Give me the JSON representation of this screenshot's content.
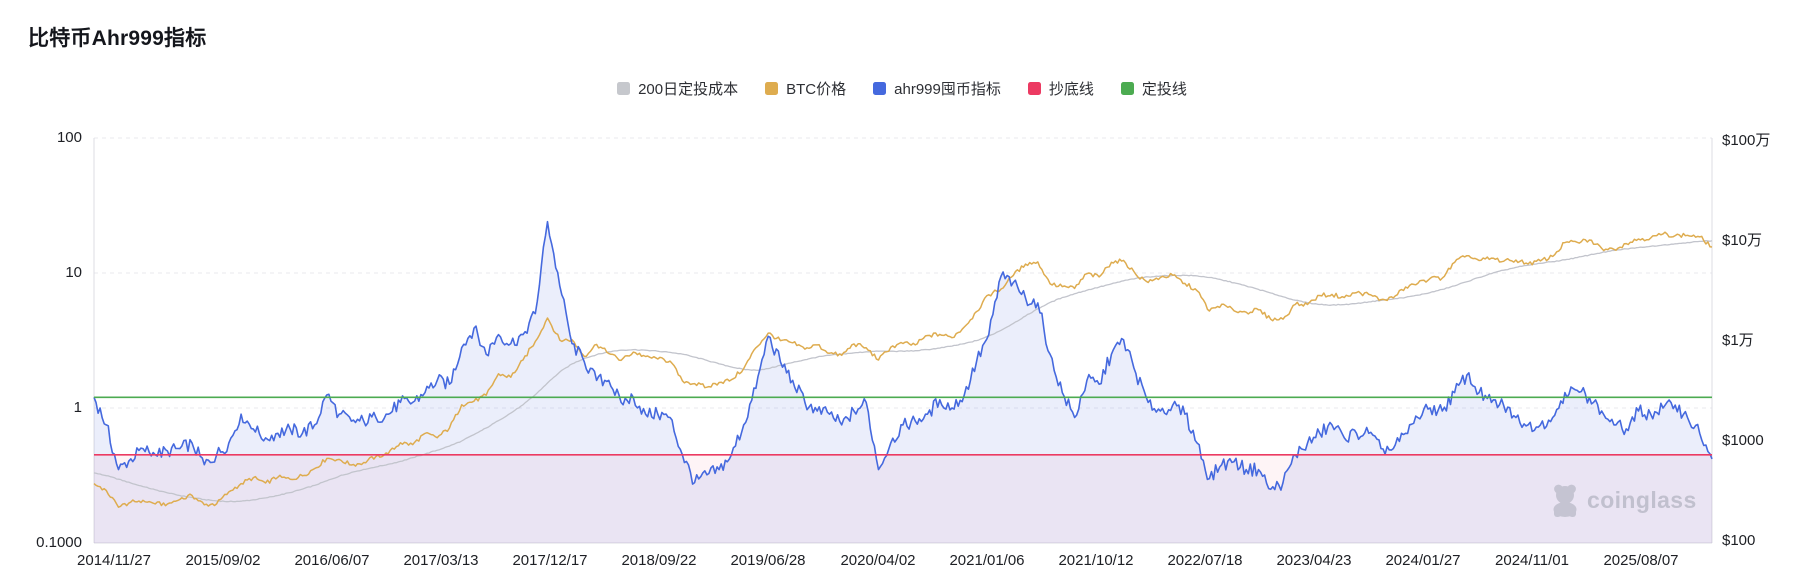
{
  "title": "比特币Ahr999指标",
  "watermark": "coinglass",
  "colors": {
    "dca_line": "#c2c4cc",
    "btc_line": "#deac4f",
    "ahr_line": "#4569de",
    "ahr_fill": "rgba(88,116,220,0.12)",
    "buy_line": "#ec3a62",
    "dca_zone_fill": "rgba(236,58,98,0.055)",
    "invest_line": "#4cab51",
    "grid": "#e9e9ee",
    "axis_border": "#dddde3",
    "legend_swatch_gray": "#c6c8cd"
  },
  "legend": {
    "items": [
      {
        "key": "dca200",
        "label": "200日定投成本",
        "color": "#c6c8cd"
      },
      {
        "key": "btc",
        "label": "BTC价格",
        "color": "#deac4f"
      },
      {
        "key": "ahr999",
        "label": "ahr999囤币指标",
        "color": "#4569de"
      },
      {
        "key": "buy",
        "label": "抄底线",
        "color": "#ec3a62"
      },
      {
        "key": "invest",
        "label": "定投线",
        "color": "#4cab51"
      }
    ]
  },
  "chart_data": {
    "type": "line",
    "title": "比特币Ahr999指标",
    "x_frequency": "monthly",
    "legend_position": "top-center",
    "grid": "horizontal-dashed-log-decades",
    "x": [
      "2014-11",
      "2014-12",
      "2015-01",
      "2015-02",
      "2015-03",
      "2015-04",
      "2015-05",
      "2015-06",
      "2015-07",
      "2015-08",
      "2015-09",
      "2015-10",
      "2015-11",
      "2015-12",
      "2016-01",
      "2016-02",
      "2016-03",
      "2016-04",
      "2016-05",
      "2016-06",
      "2016-07",
      "2016-08",
      "2016-09",
      "2016-10",
      "2016-11",
      "2016-12",
      "2017-01",
      "2017-02",
      "2017-03",
      "2017-04",
      "2017-05",
      "2017-06",
      "2017-07",
      "2017-08",
      "2017-09",
      "2017-10",
      "2017-11",
      "2017-12",
      "2018-01",
      "2018-02",
      "2018-03",
      "2018-04",
      "2018-05",
      "2018-06",
      "2018-07",
      "2018-08",
      "2018-09",
      "2018-10",
      "2018-11",
      "2018-12",
      "2019-01",
      "2019-02",
      "2019-03",
      "2019-04",
      "2019-05",
      "2019-06",
      "2019-07",
      "2019-08",
      "2019-09",
      "2019-10",
      "2019-11",
      "2019-12",
      "2020-01",
      "2020-02",
      "2020-03",
      "2020-04",
      "2020-05",
      "2020-06",
      "2020-07",
      "2020-08",
      "2020-09",
      "2020-10",
      "2020-11",
      "2020-12",
      "2021-01",
      "2021-02",
      "2021-03",
      "2021-04",
      "2021-05",
      "2021-06",
      "2021-07",
      "2021-08",
      "2021-09",
      "2021-10",
      "2021-11",
      "2021-12",
      "2022-01",
      "2022-02",
      "2022-03",
      "2022-04",
      "2022-05",
      "2022-06",
      "2022-07",
      "2022-08",
      "2022-09",
      "2022-10",
      "2022-11",
      "2022-12",
      "2023-01",
      "2023-02",
      "2023-03",
      "2023-04",
      "2023-05",
      "2023-06",
      "2023-07",
      "2023-08",
      "2023-09",
      "2023-10",
      "2023-11",
      "2023-12",
      "2024-01",
      "2024-02",
      "2024-03",
      "2024-04",
      "2024-05",
      "2024-06",
      "2024-07",
      "2024-08",
      "2024-09",
      "2024-10",
      "2024-11",
      "2024-12",
      "2025-01",
      "2025-02",
      "2025-03",
      "2025-04",
      "2025-05",
      "2025-06",
      "2025-07",
      "2025-08",
      "2025-09",
      "2025-10",
      "2025-11"
    ],
    "series": [
      {
        "name": "200日定投成本",
        "axis": "right",
        "unit": "USD",
        "color": "#c2c4cc",
        "values": [
          480,
          450,
          415,
          380,
          350,
          325,
          303,
          285,
          272,
          260,
          252,
          248,
          250,
          258,
          270,
          285,
          305,
          330,
          360,
          400,
          445,
          485,
          520,
          550,
          585,
          625,
          680,
          740,
          810,
          890,
          1000,
          1160,
          1350,
          1600,
          1900,
          2300,
          2900,
          3800,
          4900,
          5900,
          6700,
          7300,
          7800,
          8100,
          8200,
          8100,
          7900,
          7700,
          7400,
          6900,
          6400,
          5900,
          5500,
          5200,
          5100,
          5300,
          5700,
          6100,
          6500,
          6900,
          7200,
          7400,
          7600,
          7800,
          7900,
          7900,
          7900,
          8000,
          8200,
          8500,
          8900,
          9400,
          10100,
          11200,
          12800,
          15000,
          17800,
          21000,
          24300,
          27200,
          29700,
          32200,
          34600,
          37200,
          40000,
          42300,
          43800,
          44700,
          45300,
          45400,
          44800,
          43200,
          40800,
          38200,
          35500,
          32800,
          30200,
          27700,
          25600,
          24100,
          23200,
          22900,
          23100,
          23700,
          24600,
          25500,
          26300,
          27300,
          28700,
          30500,
          32800,
          35600,
          39200,
          43200,
          47200,
          51000,
          54400,
          57300,
          59800,
          62100,
          64800,
          68300,
          72400,
          76600,
          80300,
          83400,
          86100,
          88600,
          91100,
          93800,
          96500,
          99000,
          100500
        ]
      },
      {
        "name": "BTC价格",
        "axis": "right",
        "unit": "USD",
        "color": "#deac4f",
        "values": [
          375,
          320,
          218,
          245,
          255,
          235,
          235,
          260,
          285,
          230,
          235,
          310,
          375,
          430,
          380,
          435,
          415,
          450,
          530,
          670,
          655,
          575,
          610,
          700,
          745,
          960,
          920,
          1190,
          1080,
          1350,
          2300,
          2500,
          2870,
          4700,
          4350,
          6450,
          9900,
          17000,
          10200,
          10300,
          7000,
          9250,
          7500,
          6400,
          7750,
          7000,
          6600,
          6300,
          4000,
          3750,
          3450,
          3850,
          4100,
          5300,
          8550,
          12000,
          10100,
          9600,
          8300,
          9150,
          7550,
          7200,
          9350,
          8550,
          6450,
          8650,
          9450,
          9150,
          11350,
          11650,
          10800,
          13800,
          19700,
          29000,
          33100,
          45200,
          58800,
          61800,
          37300,
          35000,
          33600,
          47150,
          43800,
          61300,
          64000,
          46200,
          38500,
          43200,
          45500,
          37650,
          31800,
          19950,
          23300,
          20050,
          19400,
          20500,
          16500,
          16550,
          23150,
          23150,
          28500,
          29250,
          27200,
          30450,
          29250,
          25950,
          26950,
          34650,
          37700,
          42250,
          42550,
          61150,
          71300,
          63800,
          67500,
          62700,
          64600,
          58950,
          63300,
          70200,
          96400,
          97000,
          102400,
          84350,
          82550,
          94200,
          104600,
          107100,
          117800,
          113200,
          114000,
          110000,
          87000
        ]
      },
      {
        "name": "ahr999囤币指标",
        "axis": "left",
        "unit": "ratio",
        "color": "#4569de",
        "fill": true,
        "values": [
          1.2,
          0.75,
          0.35,
          0.42,
          0.5,
          0.45,
          0.48,
          0.5,
          0.55,
          0.38,
          0.45,
          0.55,
          0.9,
          0.7,
          0.6,
          0.65,
          0.7,
          0.65,
          0.75,
          1.25,
          0.9,
          0.8,
          0.8,
          0.85,
          0.9,
          1.1,
          1.1,
          1.3,
          1.6,
          1.5,
          2.8,
          3.9,
          2.5,
          3.5,
          3.0,
          3.5,
          5.0,
          24,
          8,
          3.0,
          2.2,
          1.6,
          1.6,
          1.1,
          1.2,
          0.9,
          0.9,
          0.85,
          0.45,
          0.28,
          0.32,
          0.35,
          0.45,
          0.75,
          1.4,
          3.4,
          2.2,
          1.6,
          1.1,
          0.95,
          0.9,
          0.75,
          0.95,
          1.1,
          0.35,
          0.55,
          0.75,
          0.8,
          0.9,
          1.15,
          1.0,
          1.25,
          2.2,
          3.5,
          9.5,
          8.5,
          6.5,
          6.0,
          2.5,
          1.3,
          0.85,
          1.6,
          1.5,
          2.5,
          3.2,
          1.8,
          1.1,
          0.95,
          1.05,
          0.9,
          0.55,
          0.3,
          0.38,
          0.4,
          0.35,
          0.35,
          0.25,
          0.28,
          0.45,
          0.55,
          0.65,
          0.75,
          0.6,
          0.65,
          0.65,
          0.5,
          0.5,
          0.65,
          0.85,
          1.0,
          0.95,
          1.3,
          1.75,
          1.3,
          1.1,
          1.05,
          0.85,
          0.75,
          0.75,
          0.85,
          1.3,
          1.35,
          1.2,
          0.95,
          0.75,
          0.7,
          0.95,
          0.9,
          1.0,
          1.05,
          0.85,
          0.65,
          0.42
        ]
      }
    ],
    "hlines": [
      {
        "name": "抄底线",
        "value": 0.45,
        "axis": "left",
        "color": "#ec3a62",
        "shade_below": true
      },
      {
        "name": "定投线",
        "value": 1.2,
        "axis": "left",
        "color": "#4cab51"
      }
    ],
    "axes": {
      "left": {
        "scale": "log",
        "min": 0.1,
        "max": 100,
        "tick_labels": [
          "100",
          "10",
          "1",
          "0.1000"
        ],
        "tick_values": [
          100,
          10,
          1,
          0.1
        ]
      },
      "right": {
        "scale": "log",
        "min": 100,
        "max": 1000000,
        "tick_labels": [
          "$100万",
          "$10万",
          "$1万",
          "$1000",
          "$100"
        ],
        "tick_values": [
          1000000,
          100000,
          10000,
          1000,
          100
        ]
      }
    },
    "x_ticks": [
      "2014/11/27",
      "2015/09/02",
      "2016/06/07",
      "2017/03/13",
      "2017/12/17",
      "2018/09/22",
      "2019/06/28",
      "2020/04/02",
      "2021/01/06",
      "2021/10/12",
      "2022/07/18",
      "2023/04/23",
      "2024/01/27",
      "2024/11/01",
      "2025/08/07"
    ]
  }
}
